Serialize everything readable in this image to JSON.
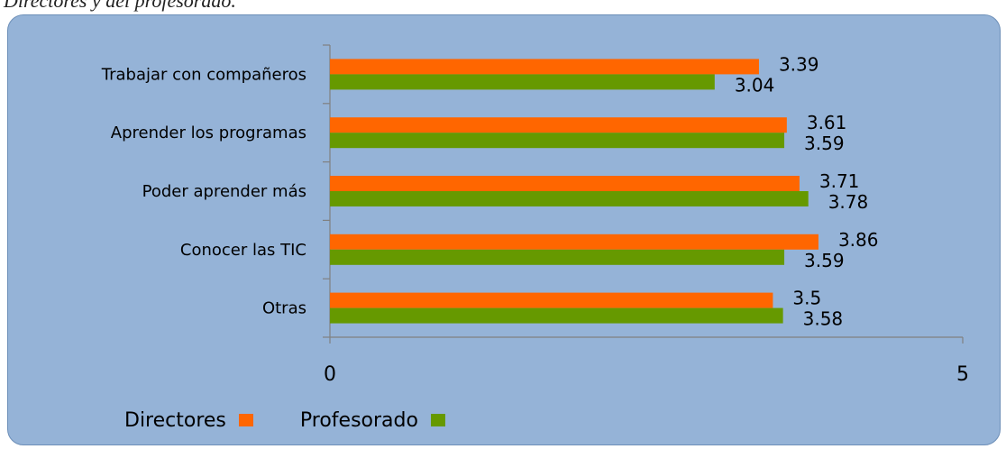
{
  "caption": "Directores y del profesorado.",
  "colors": {
    "directores": "#ff6600",
    "profesorado": "#669900",
    "panel": "#95b3d7"
  },
  "chart_data": {
    "type": "bar",
    "orientation": "horizontal",
    "categories": [
      "Trabajar con compañeros",
      "Aprender los programas",
      "Poder aprender más",
      "Conocer las TIC",
      "Otras"
    ],
    "series": [
      {
        "name": "Directores",
        "values": [
          3.39,
          3.61,
          3.71,
          3.86,
          3.5
        ],
        "labels": [
          "3.39",
          "3.61",
          "3.71",
          "3.86",
          "3.5"
        ]
      },
      {
        "name": "Profesorado",
        "values": [
          3.04,
          3.59,
          3.78,
          3.59,
          3.58
        ],
        "labels": [
          "3.04",
          "3.59",
          "3.78",
          "3.59",
          "3.58"
        ]
      }
    ],
    "xlim": [
      0,
      5
    ],
    "ticks": [
      "0",
      "5"
    ],
    "legend_position": "bottom-left"
  }
}
